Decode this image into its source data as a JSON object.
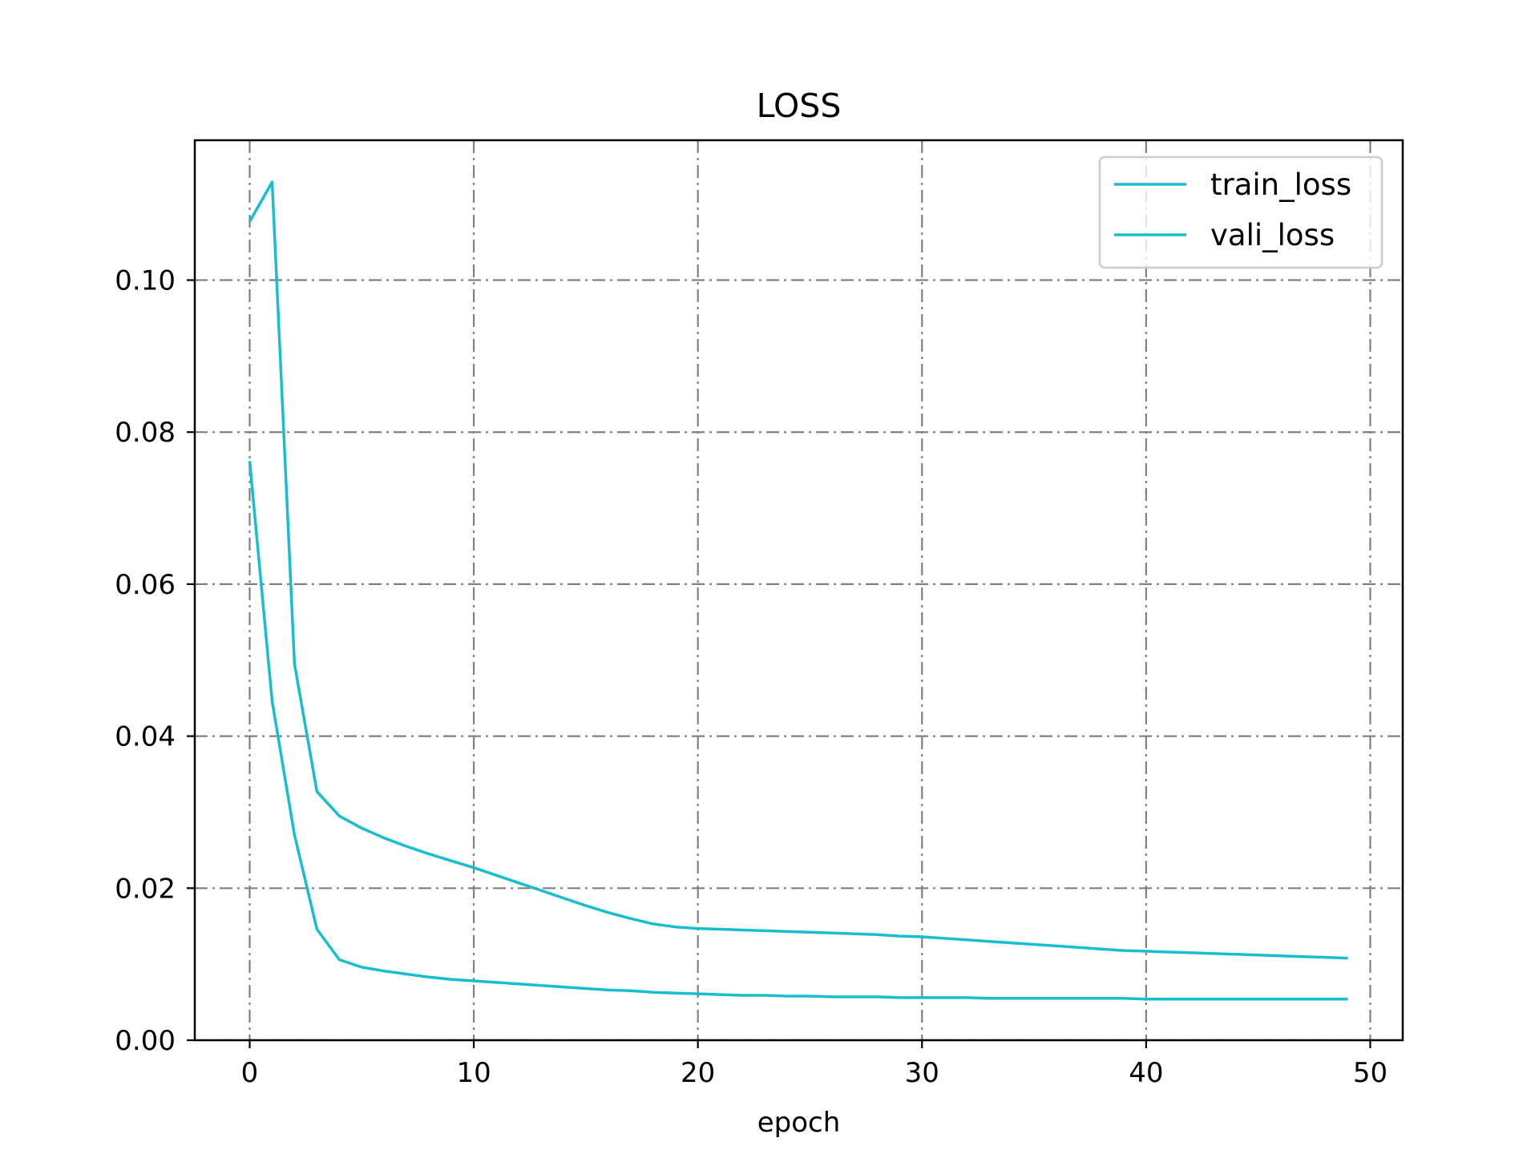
{
  "chart_data": {
    "type": "line",
    "title": "LOSS",
    "xlabel": "epoch",
    "ylabel": "",
    "xlim": [
      -2.45,
      51.45
    ],
    "ylim": [
      0.0,
      0.1184
    ],
    "xticks": [
      0,
      10,
      20,
      30,
      40,
      50
    ],
    "xtick_labels": [
      "0",
      "10",
      "20",
      "30",
      "40",
      "50"
    ],
    "yticks": [
      0.0,
      0.02,
      0.04,
      0.06,
      0.08,
      0.1
    ],
    "ytick_labels": [
      "0.00",
      "0.02",
      "0.04",
      "0.06",
      "0.08",
      "0.10"
    ],
    "grid": true,
    "legend_position": "top-right",
    "colors": {
      "line": "#17becf",
      "grid": "#808080",
      "axes": "#000000"
    },
    "series": [
      {
        "name": "train_loss",
        "x": [
          0,
          1,
          2,
          3,
          4,
          5,
          6,
          7,
          8,
          9,
          10,
          11,
          12,
          13,
          14,
          15,
          16,
          17,
          18,
          19,
          20,
          21,
          22,
          23,
          24,
          25,
          26,
          27,
          28,
          29,
          30,
          31,
          32,
          33,
          34,
          35,
          36,
          37,
          38,
          39,
          40,
          41,
          42,
          43,
          44,
          45,
          46,
          47,
          48,
          49
        ],
        "values": [
          0.1077,
          0.1129,
          0.0495,
          0.0327,
          0.0295,
          0.0279,
          0.0266,
          0.0255,
          0.0245,
          0.0236,
          0.0227,
          0.0217,
          0.0207,
          0.0197,
          0.0187,
          0.0177,
          0.0168,
          0.016,
          0.0153,
          0.0149,
          0.0147,
          0.0146,
          0.0145,
          0.0144,
          0.0143,
          0.0142,
          0.0141,
          0.014,
          0.0139,
          0.0137,
          0.0136,
          0.0134,
          0.0132,
          0.013,
          0.0128,
          0.0126,
          0.0124,
          0.0122,
          0.012,
          0.0118,
          0.0117,
          0.0116,
          0.0115,
          0.0114,
          0.0113,
          0.0112,
          0.0111,
          0.011,
          0.0109,
          0.0108
        ]
      },
      {
        "name": "vali_loss",
        "x": [
          0,
          1,
          2,
          3,
          4,
          5,
          6,
          7,
          8,
          9,
          10,
          11,
          12,
          13,
          14,
          15,
          16,
          17,
          18,
          19,
          20,
          21,
          22,
          23,
          24,
          25,
          26,
          27,
          28,
          29,
          30,
          31,
          32,
          33,
          34,
          35,
          36,
          37,
          38,
          39,
          40,
          41,
          42,
          43,
          44,
          45,
          46,
          47,
          48,
          49
        ],
        "values": [
          0.0762,
          0.0446,
          0.027,
          0.0146,
          0.0106,
          0.0096,
          0.0091,
          0.0087,
          0.0083,
          0.008,
          0.0078,
          0.0076,
          0.0074,
          0.0072,
          0.007,
          0.0068,
          0.0066,
          0.0065,
          0.0063,
          0.0062,
          0.0061,
          0.006,
          0.0059,
          0.0059,
          0.0058,
          0.0058,
          0.0057,
          0.0057,
          0.0057,
          0.0056,
          0.0056,
          0.0056,
          0.0056,
          0.0055,
          0.0055,
          0.0055,
          0.0055,
          0.0055,
          0.0055,
          0.0055,
          0.0054,
          0.0054,
          0.0054,
          0.0054,
          0.0054,
          0.0054,
          0.0054,
          0.0054,
          0.0054,
          0.0054
        ]
      }
    ]
  }
}
